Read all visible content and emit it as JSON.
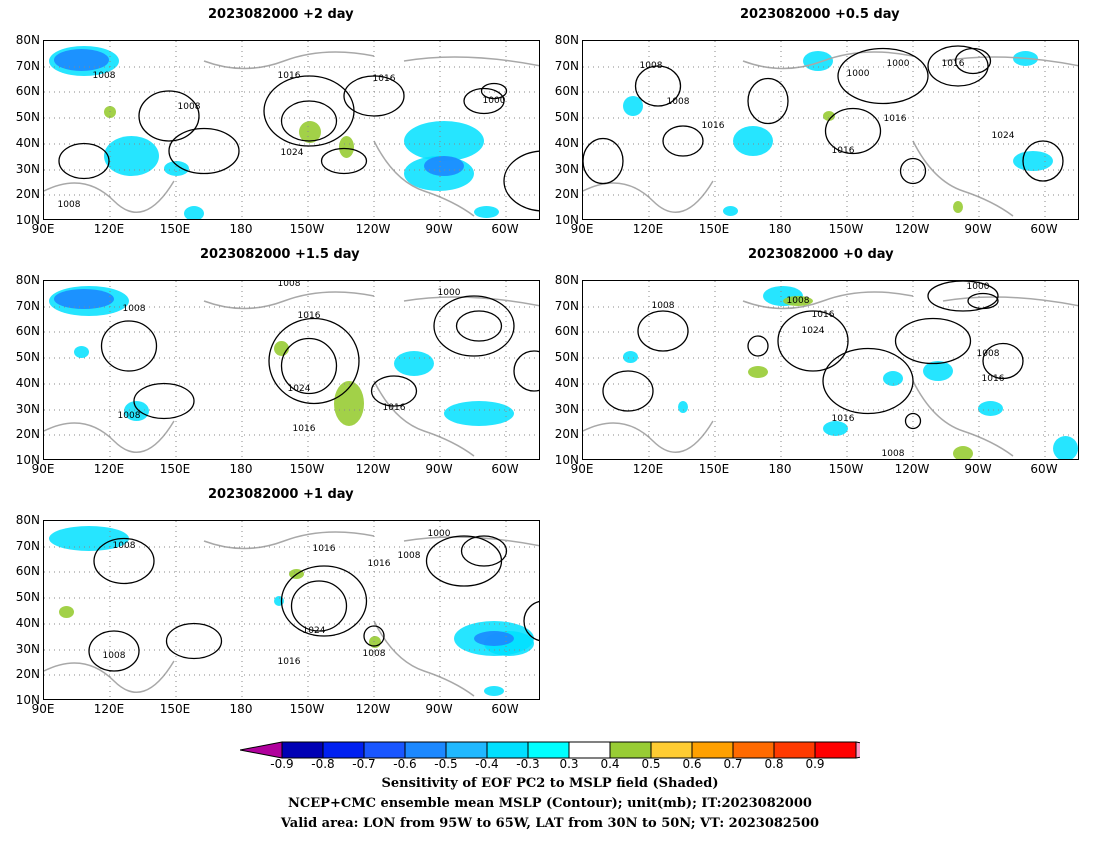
{
  "panels": [
    {
      "title": "2023082000 +2 day"
    },
    {
      "title": "2023082000 +0.5 day"
    },
    {
      "title": "2023082000 +1.5 day"
    },
    {
      "title": "2023082000 +0 day"
    },
    {
      "title": "2023082000 +1 day"
    }
  ],
  "lat_labels": [
    "80N",
    "70N",
    "60N",
    "50N",
    "40N",
    "30N",
    "20N",
    "10N"
  ],
  "lon_labels": [
    "90E",
    "120E",
    "150E",
    "180",
    "150W",
    "120W",
    "90W",
    "60W"
  ],
  "contour_labels": {
    "p0": [
      "1008",
      "1016",
      "1016",
      "1008",
      "1000",
      "1024",
      "1008"
    ],
    "p1": [
      "1008",
      "1008",
      "1000",
      "1000",
      "1016",
      "1016",
      "1016",
      "1024",
      "1016"
    ],
    "p2": [
      "1008",
      "1008",
      "1016",
      "1000",
      "1024",
      "1016",
      "1016",
      "1008"
    ],
    "p3": [
      "1008",
      "1008",
      "1016",
      "1024",
      "1000",
      "1008",
      "1016",
      "1016",
      "1008"
    ],
    "p4": [
      "1008",
      "1016",
      "1016",
      "1008",
      "1000",
      "1024",
      "1016",
      "1008",
      "1008"
    ]
  },
  "colorbar": {
    "labels": [
      "-0.9",
      "-0.8",
      "-0.7",
      "-0.6",
      "-0.5",
      "-0.4",
      "-0.3",
      "0.3",
      "0.4",
      "0.5",
      "0.6",
      "0.7",
      "0.8",
      "0.9"
    ],
    "colors": [
      "#b0009c",
      "#0000b4",
      "#0020f0",
      "#1a56ff",
      "#1c88ff",
      "#20b8ff",
      "#00e0ff",
      "#00ffff",
      "#ffffff",
      "#98cc34",
      "#ffcc33",
      "#ffa000",
      "#ff6a00",
      "#ff3a00",
      "#ff0000",
      "#ff9cc8"
    ]
  },
  "caption": {
    "line1": "Sensitivity of EOF PC2 to MSLP field (Shaded)",
    "line2": "NCEP+CMC ensemble mean MSLP (Contour); unit(mb); IT:2023082000",
    "line3": "Valid area: LON from 95W to 65W, LAT from 30N to 50N; VT: 2023082500"
  }
}
